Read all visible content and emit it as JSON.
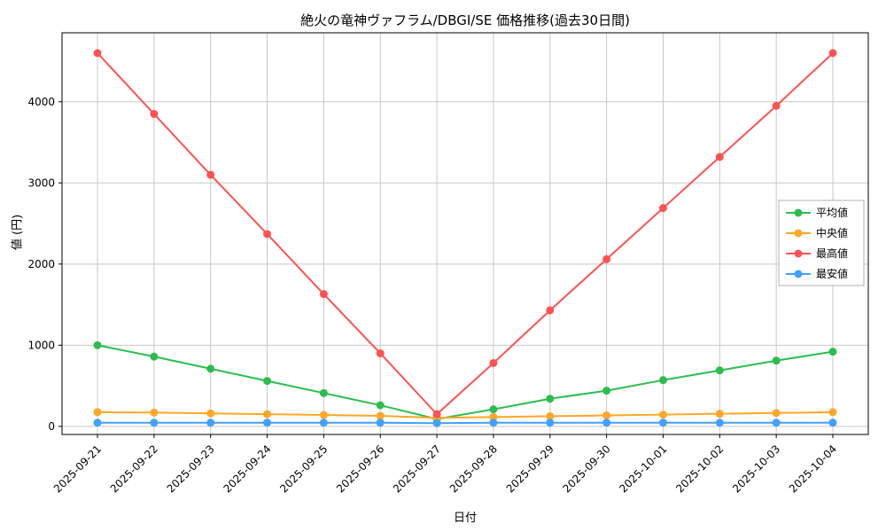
{
  "chart_data": {
    "type": "line",
    "title": "絶火の竜神ヴァフラム/DBGI/SE 価格推移(過去30日間)",
    "xlabel": "日付",
    "ylabel": "値 (円)",
    "categories": [
      "2025-09-21",
      "2025-09-22",
      "2025-09-23",
      "2025-09-24",
      "2025-09-25",
      "2025-09-26",
      "2025-09-27",
      "2025-09-28",
      "2025-09-29",
      "2025-09-30",
      "2025-10-01",
      "2025-10-02",
      "2025-10-03",
      "2025-10-04"
    ],
    "series": [
      {
        "name": "平均値",
        "color": "#2dbd4e",
        "values": [
          1000,
          860,
          710,
          560,
          410,
          260,
          90,
          210,
          340,
          440,
          570,
          690,
          810,
          920
        ]
      },
      {
        "name": "中央値",
        "color": "#ffa726",
        "values": [
          175,
          170,
          160,
          150,
          140,
          130,
          105,
          115,
          125,
          135,
          145,
          155,
          165,
          175
        ]
      },
      {
        "name": "最高値",
        "color": "#ff5252",
        "values": [
          4600,
          3850,
          3100,
          2370,
          1630,
          900,
          150,
          780,
          1430,
          2060,
          2690,
          3320,
          3950,
          4600
        ]
      },
      {
        "name": "最安値",
        "color": "#42a0ff",
        "values": [
          45,
          45,
          45,
          45,
          45,
          45,
          40,
          45,
          45,
          45,
          45,
          45,
          45,
          45
        ]
      }
    ],
    "ylim": [
      -100,
      4850
    ],
    "yticks": [
      0,
      1000,
      2000,
      3000,
      4000
    ],
    "grid": true,
    "grid_color": "#c8c8c8",
    "legend_position": "right",
    "legend_order": [
      "平均値",
      "中央値",
      "最高値",
      "最安値"
    ]
  }
}
